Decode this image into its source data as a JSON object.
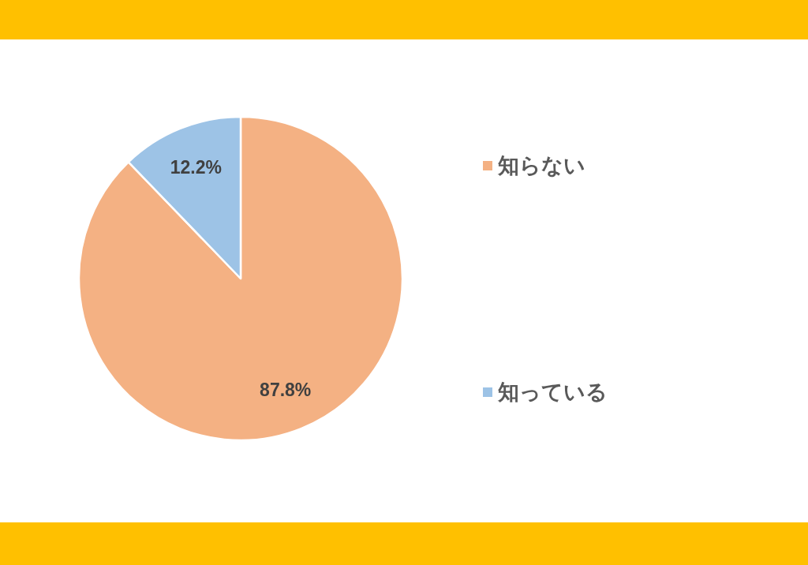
{
  "chart_data": {
    "type": "pie",
    "categories": [
      "知らない",
      "知っている"
    ],
    "values": [
      87.8,
      12.2
    ],
    "colors": [
      "#f4b183",
      "#9dc3e6"
    ],
    "value_labels": [
      "87.8%",
      "12.2%"
    ],
    "legend": "right"
  }
}
